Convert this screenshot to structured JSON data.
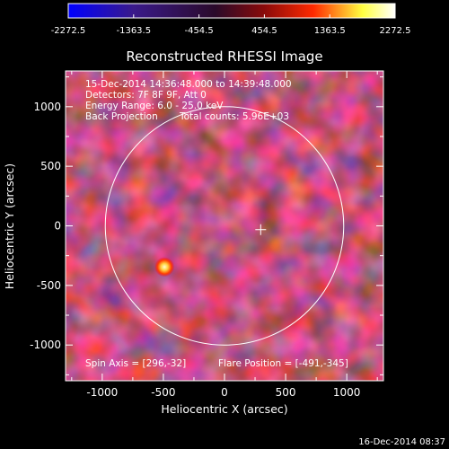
{
  "colorbar": {
    "tick_labels": [
      "-2272.5",
      "-1363.5",
      "-454.5",
      "454.5",
      "1363.5",
      "2272.5"
    ],
    "range": [
      -2272.5,
      2272.5
    ],
    "colors": [
      "#0000ff",
      "#3a1a8a",
      "#2a0a2a",
      "#8a0a0a",
      "#ff2a00",
      "#ffff40",
      "#ffffff"
    ]
  },
  "title": "Reconstructed RHESSI Image",
  "info": {
    "line1": "15-Dec-2014 14:36:48.000 to 14:39:48.000",
    "line2": "Detectors: 7F 8F 9F, Att 0",
    "line3": "Energy Range: 6.0 - 25.0 keV",
    "line4_left": "Back Projection",
    "line4_right": "Total counts: 5.96E+03"
  },
  "footer_info": {
    "spin_axis": "Spin Axis = [296,-32]",
    "flare_position": "Flare Position = [-491,-345]"
  },
  "axes": {
    "xlabel": "Heliocentric X (arcsec)",
    "ylabel": "Heliocentric Y (arcsec)",
    "x_ticks": [
      "-1000",
      "-500",
      "0",
      "500",
      "1000"
    ],
    "y_ticks": [
      "1000",
      "500",
      "0",
      "-500",
      "-1000"
    ],
    "xlim": [
      -1300,
      1300
    ],
    "ylim": [
      -1300,
      1300
    ]
  },
  "timestamp": "16-Dec-2014 08:37",
  "image": {
    "solar_disk_radius_arcsec": 975,
    "spin_axis_xy": [
      296,
      -32
    ],
    "flare_xy": [
      -491,
      -345
    ]
  }
}
